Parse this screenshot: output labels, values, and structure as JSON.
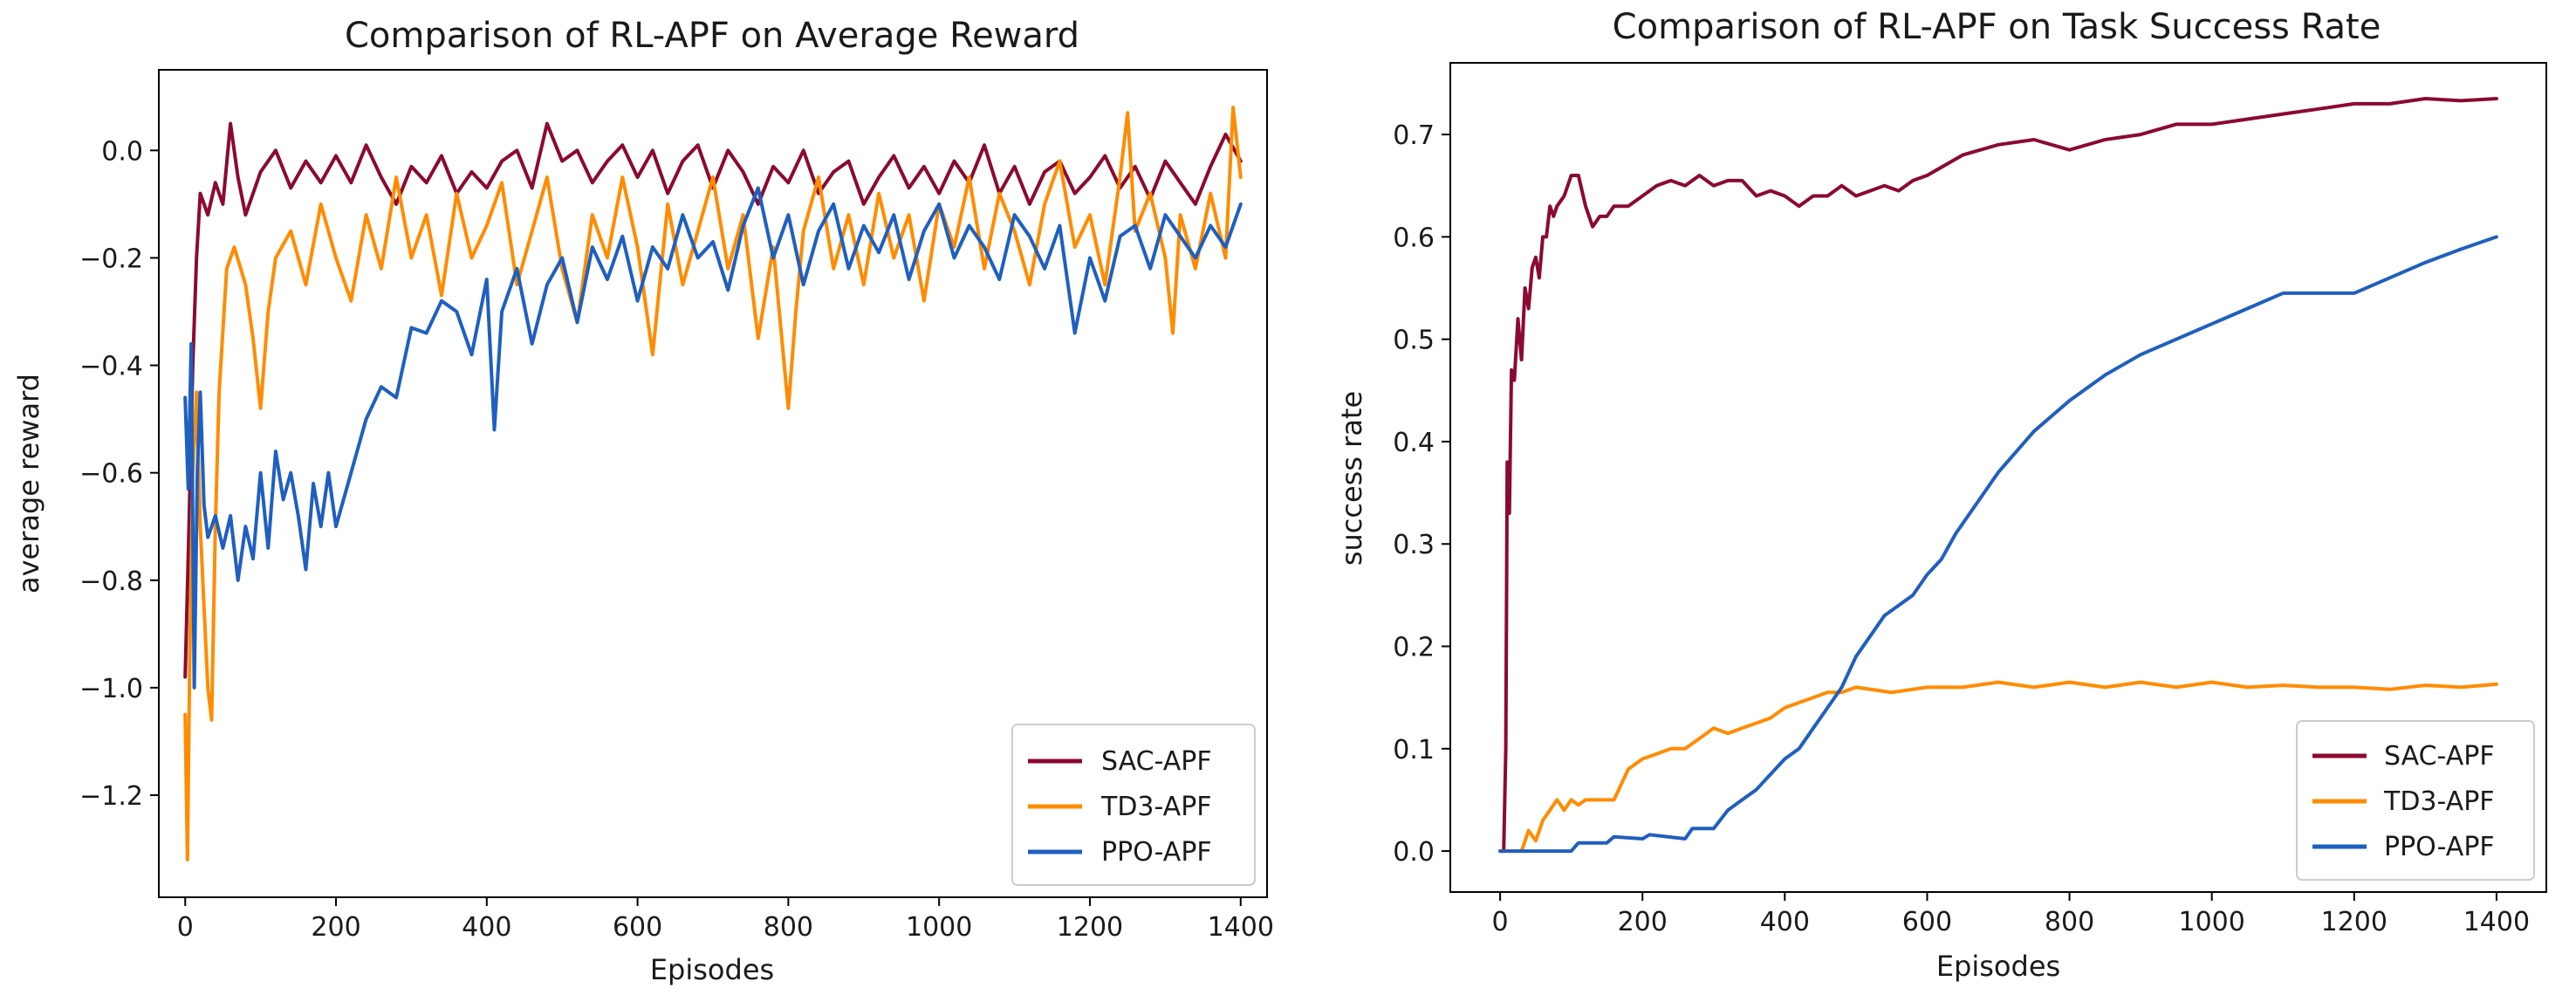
{
  "chart_data": [
    {
      "type": "line",
      "title": "Comparison of RL-APF on Average Reward",
      "xlabel": "Episodes",
      "ylabel": "average reward",
      "xlim": [
        -35,
        1435
      ],
      "ylim": [
        -1.39,
        0.15
      ],
      "xticks": [
        0,
        200,
        400,
        600,
        800,
        1000,
        1200,
        1400
      ],
      "xtick_labels": [
        "0",
        "200",
        "400",
        "600",
        "800",
        "1000",
        "1200",
        "1400"
      ],
      "yticks": [
        0.0,
        -0.2,
        -0.4,
        -0.6,
        -0.8,
        -1.0,
        -1.2
      ],
      "ytick_labels": [
        "0.0",
        "−0.2",
        "−0.4",
        "−0.6",
        "−0.8",
        "−1.0",
        "−1.2"
      ],
      "legend_position": "lower-right",
      "series": [
        {
          "name": "SAC-APF",
          "color": "#8b0a2f",
          "x": [
            0,
            5,
            10,
            15,
            20,
            30,
            40,
            50,
            60,
            70,
            80,
            100,
            120,
            140,
            160,
            180,
            200,
            220,
            240,
            260,
            280,
            300,
            320,
            340,
            360,
            380,
            400,
            420,
            440,
            460,
            480,
            500,
            520,
            540,
            560,
            580,
            600,
            620,
            640,
            660,
            680,
            700,
            720,
            740,
            760,
            780,
            800,
            820,
            840,
            860,
            880,
            900,
            920,
            940,
            960,
            980,
            1000,
            1020,
            1040,
            1060,
            1080,
            1100,
            1120,
            1140,
            1160,
            1180,
            1200,
            1220,
            1240,
            1260,
            1280,
            1300,
            1320,
            1340,
            1360,
            1380,
            1400
          ],
          "y": [
            -0.98,
            -0.7,
            -0.4,
            -0.2,
            -0.08,
            -0.12,
            -0.06,
            -0.1,
            0.05,
            -0.05,
            -0.12,
            -0.04,
            0.0,
            -0.07,
            -0.02,
            -0.06,
            -0.01,
            -0.06,
            0.01,
            -0.05,
            -0.1,
            -0.03,
            -0.06,
            -0.01,
            -0.08,
            -0.04,
            -0.07,
            -0.02,
            0.0,
            -0.07,
            0.05,
            -0.02,
            0.0,
            -0.06,
            -0.02,
            0.01,
            -0.05,
            0.0,
            -0.08,
            -0.02,
            0.01,
            -0.07,
            0.0,
            -0.04,
            -0.1,
            -0.03,
            -0.06,
            0.0,
            -0.08,
            -0.04,
            -0.02,
            -0.1,
            -0.05,
            -0.01,
            -0.07,
            -0.03,
            -0.08,
            -0.02,
            -0.06,
            0.01,
            -0.08,
            -0.03,
            -0.1,
            -0.04,
            -0.02,
            -0.08,
            -0.05,
            -0.01,
            -0.07,
            -0.03,
            -0.09,
            -0.02,
            -0.06,
            -0.1,
            -0.03,
            0.03,
            -0.02
          ]
        },
        {
          "name": "TD3-APF",
          "color": "#ff8c00",
          "x": [
            0,
            3,
            6,
            10,
            15,
            20,
            25,
            30,
            35,
            40,
            45,
            55,
            65,
            80,
            90,
            100,
            110,
            120,
            140,
            160,
            180,
            200,
            220,
            240,
            260,
            280,
            300,
            320,
            340,
            360,
            380,
            400,
            420,
            440,
            460,
            480,
            500,
            520,
            540,
            560,
            580,
            600,
            620,
            640,
            660,
            680,
            700,
            720,
            740,
            760,
            780,
            800,
            810,
            820,
            840,
            860,
            880,
            900,
            920,
            940,
            960,
            980,
            1000,
            1020,
            1040,
            1060,
            1080,
            1100,
            1120,
            1140,
            1160,
            1180,
            1200,
            1220,
            1240,
            1250,
            1260,
            1280,
            1300,
            1310,
            1320,
            1340,
            1360,
            1380,
            1390,
            1400
          ],
          "y": [
            -1.05,
            -1.32,
            -0.95,
            -0.6,
            -0.45,
            -0.7,
            -0.85,
            -1.0,
            -1.06,
            -0.7,
            -0.45,
            -0.22,
            -0.18,
            -0.25,
            -0.35,
            -0.48,
            -0.3,
            -0.2,
            -0.15,
            -0.25,
            -0.1,
            -0.2,
            -0.28,
            -0.12,
            -0.22,
            -0.05,
            -0.2,
            -0.12,
            -0.27,
            -0.08,
            -0.2,
            -0.14,
            -0.06,
            -0.25,
            -0.15,
            -0.05,
            -0.22,
            -0.32,
            -0.12,
            -0.2,
            -0.05,
            -0.18,
            -0.38,
            -0.1,
            -0.25,
            -0.15,
            -0.05,
            -0.22,
            -0.12,
            -0.35,
            -0.18,
            -0.48,
            -0.3,
            -0.15,
            -0.05,
            -0.22,
            -0.12,
            -0.25,
            -0.08,
            -0.2,
            -0.12,
            -0.28,
            -0.1,
            -0.18,
            -0.05,
            -0.22,
            -0.08,
            -0.15,
            -0.25,
            -0.1,
            -0.02,
            -0.18,
            -0.12,
            -0.25,
            -0.05,
            0.07,
            -0.15,
            -0.08,
            -0.2,
            -0.34,
            -0.12,
            -0.22,
            -0.08,
            -0.2,
            0.08,
            -0.05
          ]
        },
        {
          "name": "PPO-APF",
          "color": "#1f5fbf",
          "x": [
            0,
            4,
            8,
            12,
            16,
            20,
            25,
            30,
            40,
            50,
            60,
            70,
            80,
            90,
            100,
            110,
            120,
            130,
            140,
            150,
            160,
            170,
            180,
            190,
            200,
            220,
            240,
            260,
            280,
            300,
            320,
            340,
            360,
            380,
            400,
            410,
            420,
            440,
            460,
            480,
            500,
            520,
            540,
            560,
            580,
            600,
            620,
            640,
            660,
            680,
            700,
            720,
            740,
            760,
            780,
            800,
            820,
            840,
            860,
            880,
            900,
            920,
            940,
            960,
            980,
            1000,
            1020,
            1040,
            1060,
            1080,
            1100,
            1120,
            1140,
            1160,
            1180,
            1200,
            1220,
            1240,
            1260,
            1280,
            1300,
            1320,
            1340,
            1360,
            1380,
            1400
          ],
          "y": [
            -0.46,
            -0.63,
            -0.36,
            -1.0,
            -0.6,
            -0.45,
            -0.66,
            -0.72,
            -0.68,
            -0.74,
            -0.68,
            -0.8,
            -0.7,
            -0.76,
            -0.6,
            -0.74,
            -0.56,
            -0.65,
            -0.6,
            -0.68,
            -0.78,
            -0.62,
            -0.7,
            -0.6,
            -0.7,
            -0.6,
            -0.5,
            -0.44,
            -0.46,
            -0.33,
            -0.34,
            -0.28,
            -0.3,
            -0.38,
            -0.24,
            -0.52,
            -0.3,
            -0.22,
            -0.36,
            -0.25,
            -0.2,
            -0.32,
            -0.18,
            -0.24,
            -0.16,
            -0.28,
            -0.18,
            -0.22,
            -0.12,
            -0.2,
            -0.17,
            -0.26,
            -0.14,
            -0.07,
            -0.2,
            -0.12,
            -0.25,
            -0.15,
            -0.1,
            -0.22,
            -0.14,
            -0.19,
            -0.12,
            -0.24,
            -0.15,
            -0.1,
            -0.2,
            -0.14,
            -0.18,
            -0.24,
            -0.12,
            -0.16,
            -0.22,
            -0.14,
            -0.34,
            -0.2,
            -0.28,
            -0.16,
            -0.14,
            -0.22,
            -0.12,
            -0.16,
            -0.2,
            -0.14,
            -0.18,
            -0.1
          ]
        }
      ]
    },
    {
      "type": "line",
      "title": "Comparison of RL-APF on Task Success Rate",
      "xlabel": "Episodes",
      "ylabel": "success rate",
      "xlim": [
        -70,
        1470
      ],
      "ylim": [
        -0.04,
        0.77
      ],
      "xticks": [
        0,
        200,
        400,
        600,
        800,
        1000,
        1200,
        1400
      ],
      "xtick_labels": [
        "0",
        "200",
        "400",
        "600",
        "800",
        "1000",
        "1200",
        "1400"
      ],
      "yticks": [
        0.0,
        0.1,
        0.2,
        0.3,
        0.4,
        0.5,
        0.6,
        0.7
      ],
      "ytick_labels": [
        "0.0",
        "0.1",
        "0.2",
        "0.3",
        "0.4",
        "0.5",
        "0.6",
        "0.7"
      ],
      "legend_position": "lower-right",
      "series": [
        {
          "name": "SAC-APF",
          "color": "#8b0a2f",
          "x": [
            0,
            5,
            8,
            10,
            13,
            16,
            20,
            25,
            30,
            35,
            40,
            45,
            50,
            55,
            60,
            65,
            70,
            75,
            80,
            90,
            100,
            110,
            120,
            130,
            140,
            150,
            160,
            180,
            200,
            220,
            240,
            260,
            280,
            300,
            320,
            340,
            360,
            380,
            400,
            420,
            440,
            460,
            480,
            500,
            520,
            540,
            560,
            580,
            600,
            650,
            700,
            750,
            800,
            850,
            900,
            950,
            1000,
            1050,
            1100,
            1150,
            1200,
            1250,
            1300,
            1350,
            1400
          ],
          "y": [
            0.0,
            0.0,
            0.1,
            0.38,
            0.33,
            0.47,
            0.46,
            0.52,
            0.48,
            0.55,
            0.53,
            0.57,
            0.58,
            0.56,
            0.6,
            0.6,
            0.63,
            0.62,
            0.63,
            0.64,
            0.66,
            0.66,
            0.63,
            0.61,
            0.62,
            0.62,
            0.63,
            0.63,
            0.64,
            0.65,
            0.655,
            0.65,
            0.66,
            0.65,
            0.655,
            0.655,
            0.64,
            0.645,
            0.64,
            0.63,
            0.64,
            0.64,
            0.65,
            0.64,
            0.645,
            0.65,
            0.645,
            0.655,
            0.66,
            0.68,
            0.69,
            0.695,
            0.685,
            0.695,
            0.7,
            0.71,
            0.71,
            0.715,
            0.72,
            0.725,
            0.73,
            0.73,
            0.735,
            0.733,
            0.735
          ]
        },
        {
          "name": "TD3-APF",
          "color": "#ff8c00",
          "x": [
            0,
            30,
            40,
            50,
            60,
            70,
            80,
            90,
            100,
            110,
            120,
            140,
            160,
            180,
            200,
            220,
            240,
            260,
            280,
            300,
            320,
            340,
            360,
            380,
            400,
            420,
            440,
            460,
            480,
            500,
            550,
            600,
            650,
            700,
            750,
            800,
            850,
            900,
            950,
            1000,
            1050,
            1100,
            1150,
            1200,
            1250,
            1300,
            1350,
            1400
          ],
          "y": [
            0.0,
            0.0,
            0.02,
            0.01,
            0.03,
            0.04,
            0.05,
            0.04,
            0.05,
            0.045,
            0.05,
            0.05,
            0.05,
            0.08,
            0.09,
            0.095,
            0.1,
            0.1,
            0.11,
            0.12,
            0.115,
            0.12,
            0.125,
            0.13,
            0.14,
            0.145,
            0.15,
            0.155,
            0.155,
            0.16,
            0.155,
            0.16,
            0.16,
            0.165,
            0.16,
            0.165,
            0.16,
            0.165,
            0.16,
            0.165,
            0.16,
            0.162,
            0.16,
            0.16,
            0.158,
            0.162,
            0.16,
            0.163
          ]
        },
        {
          "name": "PPO-APF",
          "color": "#1f5fbf",
          "x": [
            0,
            100,
            110,
            150,
            160,
            200,
            210,
            260,
            270,
            300,
            320,
            340,
            360,
            380,
            400,
            420,
            440,
            460,
            480,
            500,
            520,
            540,
            560,
            580,
            600,
            620,
            640,
            660,
            680,
            700,
            750,
            800,
            850,
            900,
            950,
            1000,
            1050,
            1100,
            1150,
            1200,
            1250,
            1300,
            1350,
            1400
          ],
          "y": [
            0.0,
            0.0,
            0.008,
            0.008,
            0.014,
            0.012,
            0.016,
            0.012,
            0.022,
            0.022,
            0.04,
            0.05,
            0.06,
            0.075,
            0.09,
            0.1,
            0.12,
            0.14,
            0.16,
            0.19,
            0.21,
            0.23,
            0.24,
            0.25,
            0.27,
            0.285,
            0.31,
            0.33,
            0.35,
            0.37,
            0.41,
            0.44,
            0.465,
            0.485,
            0.5,
            0.515,
            0.53,
            0.545,
            0.545,
            0.545,
            0.56,
            0.575,
            0.588,
            0.6
          ]
        }
      ]
    }
  ]
}
